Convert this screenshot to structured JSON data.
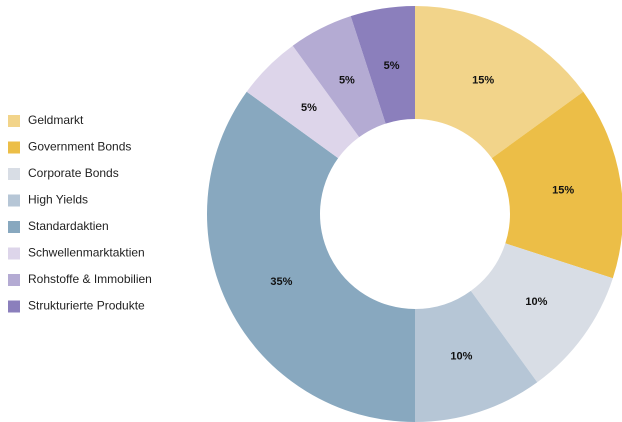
{
  "chart_data": {
    "type": "donut",
    "categories": [
      "Geldmarkt",
      "Government Bonds",
      "Corporate Bonds",
      "High Yields",
      "Standardaktien",
      "Schwellenmarktaktien",
      "Rohstoffe & Immobilien",
      "Strukturierte Produkte"
    ],
    "values": [
      15,
      15,
      10,
      10,
      35,
      5,
      5,
      5
    ],
    "value_labels": [
      "15%",
      "15%",
      "10%",
      "10%",
      "35%",
      "5%",
      "5%",
      "5%"
    ],
    "colors": [
      "#f2d48a",
      "#ecbe47",
      "#d8dde5",
      "#b6c6d6",
      "#88a8bf",
      "#ddd5ea",
      "#b4abd3",
      "#8b7fbc"
    ],
    "legend": "left"
  }
}
